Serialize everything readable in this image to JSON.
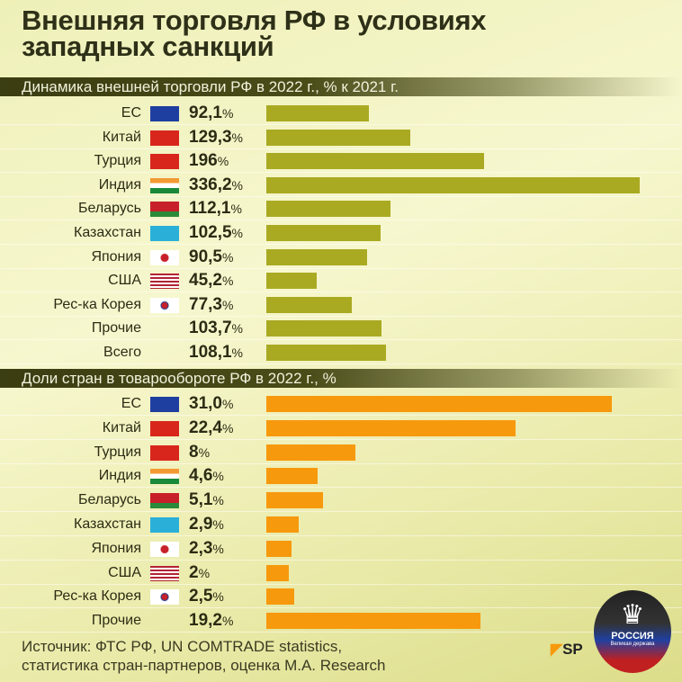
{
  "title_line1": "Внешняя торговля РФ в условиях",
  "title_line2": "западных санкций",
  "source_line1": "Источник: ФТС РФ, UN COMTRADE statistics,",
  "source_line2": "статистика стран-партнеров, оценка М.А. Research",
  "logo": {
    "text": "SP",
    "badge": "РОССИЯ",
    "badge_sub": "Великая держава"
  },
  "colors": {
    "bar1": "#a9aa22",
    "bar2": "#f7990d",
    "band": "#3b3d12"
  },
  "chart_data": [
    {
      "type": "bar",
      "orientation": "horizontal",
      "title": "Динамика внешней торговли РФ в 2022 г., % к 2021 г.",
      "categories": [
        "ЕС",
        "Китай",
        "Турция",
        "Индия",
        "Беларусь",
        "Казахстан",
        "Япония",
        "США",
        "Рес-ка Корея",
        "Прочие",
        "Всего"
      ],
      "flags": [
        "eu",
        "cn",
        "tr",
        "in",
        "by",
        "kz",
        "jp",
        "us",
        "kr",
        "",
        ""
      ],
      "values": [
        92.1,
        129.3,
        196,
        336.2,
        112.1,
        102.5,
        90.5,
        45.2,
        77.3,
        103.7,
        108.1
      ],
      "labels": [
        "92,1",
        "129,3",
        "196",
        "336,2",
        "112,1",
        "102,5",
        "90,5",
        "45,2",
        "77,3",
        "103,7",
        "108,1"
      ],
      "unit": "%",
      "xlim": [
        0,
        336.2
      ]
    },
    {
      "type": "bar",
      "orientation": "horizontal",
      "title": "Доли стран в товарообороте РФ в 2022 г., %",
      "categories": [
        "ЕС",
        "Китай",
        "Турция",
        "Индия",
        "Беларусь",
        "Казахстан",
        "Япония",
        "США",
        "Рес-ка Корея",
        "Прочие"
      ],
      "flags": [
        "eu",
        "cn",
        "tr",
        "in",
        "by",
        "kz",
        "jp",
        "us",
        "kr",
        ""
      ],
      "values": [
        31.0,
        22.4,
        8,
        4.6,
        5.1,
        2.9,
        2.3,
        2,
        2.5,
        19.2
      ],
      "labels": [
        "31,0",
        "22,4",
        "8",
        "4,6",
        "5,1",
        "2,9",
        "2,3",
        "2",
        "2,5",
        "19,2"
      ],
      "unit": "%",
      "xlim": [
        0,
        31
      ]
    }
  ]
}
